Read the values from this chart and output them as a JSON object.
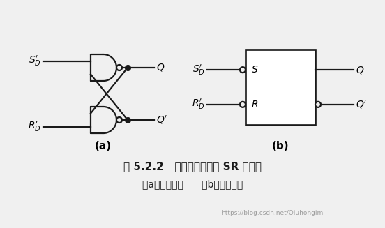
{
  "title_line1": "图 5.2.2   用与非门组成的 SR 锁存器",
  "title_line2": "（a）电路结构      （b）图形符号",
  "watermark": "https://blog.csdn.net/Qiuhongim",
  "label_SD": "$S_D'$",
  "label_RD": "$R_D'$",
  "label_Q": "$Q$",
  "label_Qp": "$Q'$",
  "label_a": "(a)",
  "label_b": "(b)",
  "label_S": "S",
  "label_R": "R",
  "bg_color": "#f0f0f0",
  "line_color": "#1a1a1a",
  "line_width": 1.6
}
